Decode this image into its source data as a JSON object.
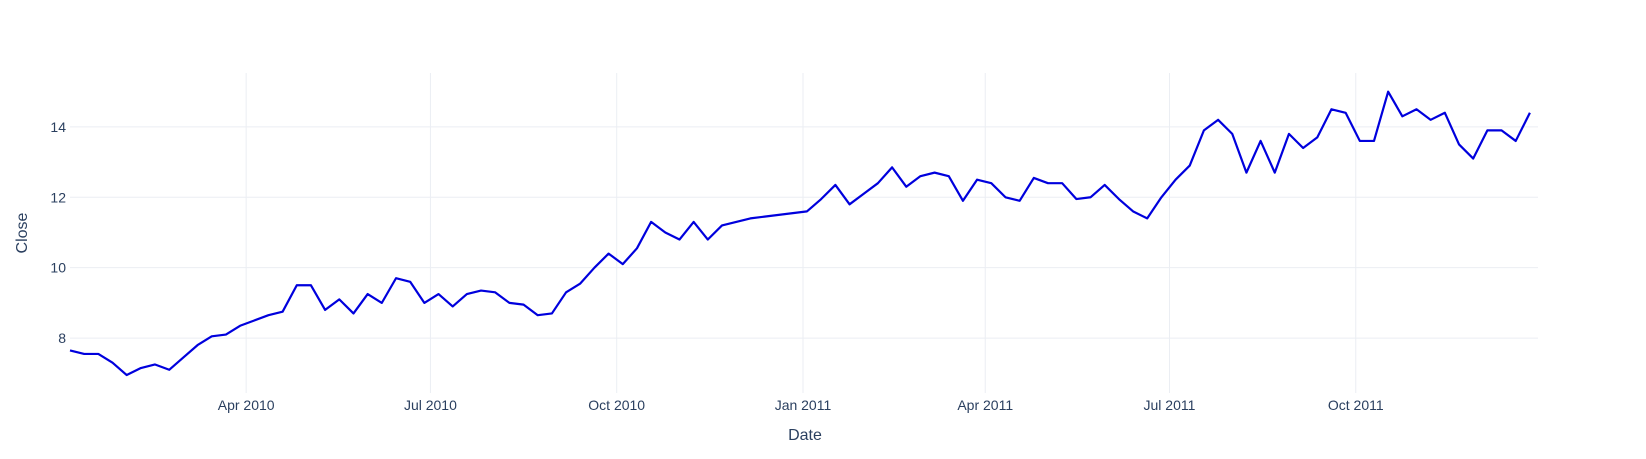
{
  "chart_data": {
    "type": "line",
    "x_label": "Date",
    "y_label": "Close",
    "x": [
      "2010-01-04",
      "2010-01-11",
      "2010-01-18",
      "2010-01-25",
      "2010-02-01",
      "2010-02-08",
      "2010-02-15",
      "2010-02-22",
      "2010-03-01",
      "2010-03-08",
      "2010-03-15",
      "2010-03-22",
      "2010-03-29",
      "2010-04-05",
      "2010-04-12",
      "2010-04-19",
      "2010-04-26",
      "2010-05-03",
      "2010-05-10",
      "2010-05-17",
      "2010-05-24",
      "2010-05-31",
      "2010-06-07",
      "2010-06-14",
      "2010-06-21",
      "2010-06-28",
      "2010-07-05",
      "2010-07-12",
      "2010-07-19",
      "2010-07-26",
      "2010-08-02",
      "2010-08-09",
      "2010-08-16",
      "2010-08-23",
      "2010-08-30",
      "2010-09-06",
      "2010-09-13",
      "2010-09-20",
      "2010-09-27",
      "2010-10-04",
      "2010-10-11",
      "2010-10-18",
      "2010-10-25",
      "2010-11-01",
      "2010-11-08",
      "2010-11-15",
      "2010-11-22",
      "2010-11-29",
      "2010-12-06",
      "2010-12-13",
      "2010-12-20",
      "2010-12-27",
      "2011-01-03",
      "2011-01-10",
      "2011-01-17",
      "2011-01-24",
      "2011-01-31",
      "2011-02-07",
      "2011-02-14",
      "2011-02-21",
      "2011-02-28",
      "2011-03-07",
      "2011-03-14",
      "2011-03-21",
      "2011-03-28",
      "2011-04-04",
      "2011-04-11",
      "2011-04-18",
      "2011-04-25",
      "2011-05-02",
      "2011-05-09",
      "2011-05-16",
      "2011-05-23",
      "2011-05-30",
      "2011-06-06",
      "2011-06-13",
      "2011-06-20",
      "2011-06-27",
      "2011-07-04",
      "2011-07-11",
      "2011-07-18",
      "2011-07-25",
      "2011-08-01",
      "2011-08-08",
      "2011-08-15",
      "2011-08-22",
      "2011-08-29",
      "2011-09-05",
      "2011-09-12",
      "2011-09-19",
      "2011-09-26",
      "2011-10-03",
      "2011-10-10",
      "2011-10-17",
      "2011-10-24",
      "2011-10-31",
      "2011-11-07",
      "2011-11-14",
      "2011-11-21",
      "2011-11-28",
      "2011-12-05",
      "2011-12-12",
      "2011-12-19",
      "2011-12-26"
    ],
    "series": [
      {
        "name": "Close",
        "color": "#0000dd",
        "values": [
          7.65,
          7.55,
          7.55,
          7.3,
          6.95,
          7.15,
          7.25,
          7.1,
          7.45,
          7.8,
          8.05,
          8.1,
          8.35,
          8.5,
          8.65,
          8.75,
          9.5,
          9.5,
          8.8,
          9.1,
          8.7,
          9.25,
          9.0,
          9.7,
          9.6,
          9.0,
          9.25,
          8.9,
          9.25,
          9.35,
          9.3,
          9.0,
          8.95,
          8.65,
          8.7,
          9.3,
          9.55,
          10.0,
          10.4,
          10.1,
          10.55,
          11.3,
          11.0,
          10.8,
          11.3,
          10.8,
          11.2,
          11.3,
          11.4,
          11.45,
          11.5,
          11.55,
          11.6,
          11.95,
          12.35,
          11.8,
          12.1,
          12.4,
          12.85,
          12.3,
          12.6,
          12.7,
          12.6,
          11.9,
          12.5,
          12.4,
          12.0,
          11.9,
          12.55,
          12.4,
          12.4,
          11.95,
          12.0,
          12.35,
          11.95,
          11.6,
          11.4,
          12.0,
          12.5,
          12.9,
          13.9,
          14.2,
          13.8,
          12.7,
          13.6,
          12.7,
          13.8,
          13.4,
          13.7,
          14.5,
          14.4,
          13.6,
          13.6,
          15.0,
          14.3,
          14.5,
          14.2,
          14.4,
          13.5,
          13.1,
          13.9,
          13.9,
          13.6,
          14.4
        ]
      }
    ],
    "xlim": [
      "2010-01-04",
      "2011-12-30"
    ],
    "xticks": [
      {
        "value": "2010-04-01",
        "label": "Apr 2010"
      },
      {
        "value": "2010-07-01",
        "label": "Jul 2010"
      },
      {
        "value": "2010-10-01",
        "label": "Oct 2010"
      },
      {
        "value": "2011-01-01",
        "label": "Jan 2011"
      },
      {
        "value": "2011-04-01",
        "label": "Apr 2011"
      },
      {
        "value": "2011-07-01",
        "label": "Jul 2011"
      },
      {
        "value": "2011-10-01",
        "label": "Oct 2011"
      }
    ],
    "ylim": [
      6.44,
      15.53
    ],
    "yticks": [
      8,
      10,
      12,
      14
    ],
    "grid": true
  }
}
